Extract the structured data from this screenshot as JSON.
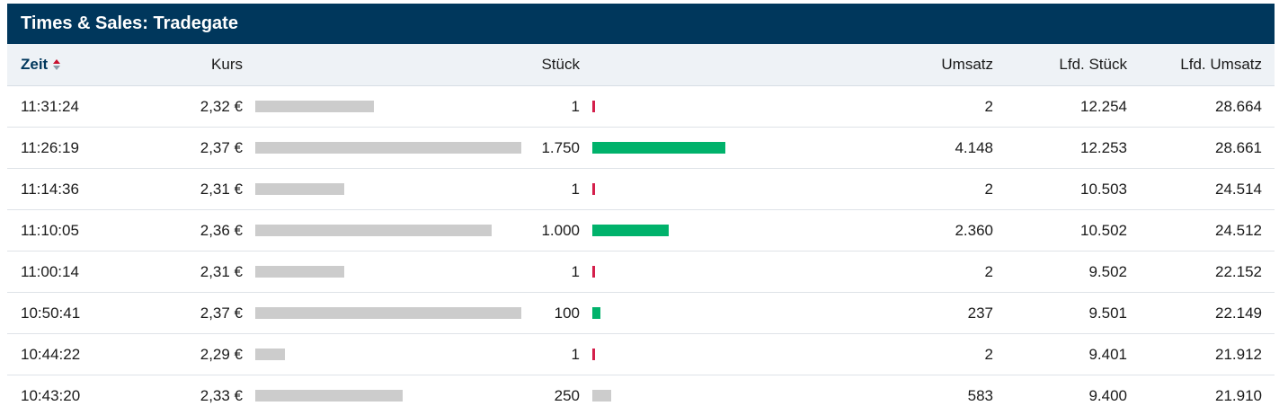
{
  "title": "Times & Sales: Tradegate",
  "columns": {
    "zeit": "Zeit",
    "kurs": "Kurs",
    "stueck": "Stück",
    "umsatz": "Umsatz",
    "lfd_stueck": "Lfd. Stück",
    "lfd_umsatz": "Lfd. Umsatz"
  },
  "sort_icon": "sort-toggle-icon",
  "colors": {
    "header_bg": "#00375c",
    "buy": "#00b26b",
    "sell": "#d41f4b",
    "neutral": "#cccccc"
  },
  "kurs_bar_scale": {
    "min": 2.28,
    "max": 2.37
  },
  "stueck_bar_scale": {
    "max": 4200
  },
  "rows": [
    {
      "zeit": "11:31:24",
      "kurs": "2,32 €",
      "kurs_value": 2.32,
      "stueck": "1",
      "stueck_value": 1,
      "direction": "sell",
      "umsatz": "2",
      "lfd_stueck": "12.254",
      "lfd_umsatz": "28.664"
    },
    {
      "zeit": "11:26:19",
      "kurs": "2,37 €",
      "kurs_value": 2.37,
      "stueck": "1.750",
      "stueck_value": 1750,
      "direction": "buy",
      "umsatz": "4.148",
      "lfd_stueck": "12.253",
      "lfd_umsatz": "28.661"
    },
    {
      "zeit": "11:14:36",
      "kurs": "2,31 €",
      "kurs_value": 2.31,
      "stueck": "1",
      "stueck_value": 1,
      "direction": "sell",
      "umsatz": "2",
      "lfd_stueck": "10.503",
      "lfd_umsatz": "24.514"
    },
    {
      "zeit": "11:10:05",
      "kurs": "2,36 €",
      "kurs_value": 2.36,
      "stueck": "1.000",
      "stueck_value": 1000,
      "direction": "buy",
      "umsatz": "2.360",
      "lfd_stueck": "10.502",
      "lfd_umsatz": "24.512"
    },
    {
      "zeit": "11:00:14",
      "kurs": "2,31 €",
      "kurs_value": 2.31,
      "stueck": "1",
      "stueck_value": 1,
      "direction": "sell",
      "umsatz": "2",
      "lfd_stueck": "9.502",
      "lfd_umsatz": "22.152"
    },
    {
      "zeit": "10:50:41",
      "kurs": "2,37 €",
      "kurs_value": 2.37,
      "stueck": "100",
      "stueck_value": 100,
      "direction": "buy",
      "umsatz": "237",
      "lfd_stueck": "9.501",
      "lfd_umsatz": "22.149"
    },
    {
      "zeit": "10:44:22",
      "kurs": "2,29 €",
      "kurs_value": 2.29,
      "stueck": "1",
      "stueck_value": 1,
      "direction": "sell",
      "umsatz": "2",
      "lfd_stueck": "9.401",
      "lfd_umsatz": "21.912"
    },
    {
      "zeit": "10:43:20",
      "kurs": "2,33 €",
      "kurs_value": 2.33,
      "stueck": "250",
      "stueck_value": 250,
      "direction": "neutral",
      "umsatz": "583",
      "lfd_stueck": "9.400",
      "lfd_umsatz": "21.910"
    }
  ]
}
